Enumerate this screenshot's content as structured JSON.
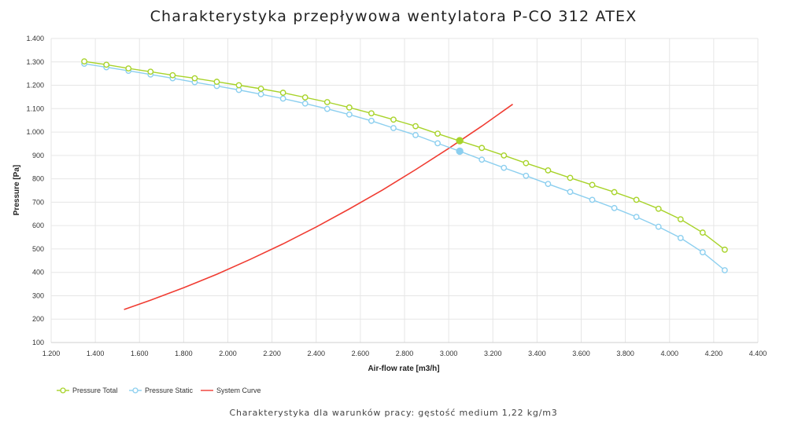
{
  "chart_data": {
    "type": "line",
    "title": "Charakterystyka przepływowa wentylatora P-CO 312 ATEX",
    "subtitle": "Charakterystyka dla warunków pracy: gęstość medium 1,22 kg/m3",
    "xlabel": "Air-flow rate [m3/h]",
    "ylabel": "Pressure [Pa]",
    "xlim": [
      1200,
      4400
    ],
    "ylim": [
      100,
      1400
    ],
    "x_ticks": [
      "1.200",
      "1.400",
      "1.600",
      "1.800",
      "2.000",
      "2.200",
      "2.400",
      "2.600",
      "2.800",
      "3.000",
      "3.200",
      "3.400",
      "3.600",
      "3.800",
      "4.000",
      "4.200",
      "4.400"
    ],
    "y_ticks": [
      "100",
      "200",
      "300",
      "400",
      "500",
      "600",
      "700",
      "800",
      "900",
      "1.000",
      "1.100",
      "1.200",
      "1.300",
      "1.400"
    ],
    "grid": true,
    "legend_position": "bottom-left",
    "series": [
      {
        "name": "Pressure Total",
        "color": "#a8d32a",
        "marker": "hollow-circle",
        "x": [
          1350,
          1450,
          1550,
          1650,
          1750,
          1850,
          1950,
          2050,
          2150,
          2250,
          2350,
          2450,
          2550,
          2650,
          2750,
          2850,
          2950,
          3050,
          3150,
          3250,
          3350,
          3450,
          3550,
          3650,
          3750,
          3850,
          3950,
          4050,
          4150,
          4250
        ],
        "y": [
          1302,
          1288,
          1272,
          1258,
          1243,
          1230,
          1215,
          1200,
          1185,
          1168,
          1148,
          1128,
          1105,
          1080,
          1053,
          1025,
          993,
          962,
          932,
          900,
          867,
          836,
          804,
          774,
          743,
          710,
          672,
          627,
          570,
          497
        ]
      },
      {
        "name": "Pressure Static",
        "color": "#8ccfef",
        "marker": "hollow-circle",
        "x": [
          1350,
          1450,
          1550,
          1650,
          1750,
          1850,
          1950,
          2050,
          2150,
          2250,
          2350,
          2450,
          2550,
          2650,
          2750,
          2850,
          2950,
          3050,
          3150,
          3250,
          3350,
          3450,
          3550,
          3650,
          3750,
          3850,
          3950,
          4050,
          4150,
          4250
        ],
        "y": [
          1292,
          1277,
          1262,
          1246,
          1230,
          1213,
          1197,
          1180,
          1162,
          1143,
          1122,
          1099,
          1075,
          1048,
          1017,
          987,
          952,
          918,
          882,
          847,
          813,
          778,
          744,
          710,
          675,
          637,
          595,
          547,
          486,
          409
        ]
      },
      {
        "name": "System Curve",
        "color": "#f03c32",
        "marker": "none",
        "x": [
          1530,
          1650,
          1800,
          1950,
          2100,
          2250,
          2400,
          2550,
          2700,
          2850,
          3000,
          3150,
          3290
        ],
        "y": [
          241,
          281,
          334,
          392,
          455,
          522,
          594,
          671,
          752,
          839,
          930,
          1025,
          1119
        ]
      }
    ],
    "operating_points": [
      {
        "series": "Pressure Total",
        "x": 3050,
        "y": 963,
        "color": "#a8d32a"
      },
      {
        "series": "Pressure Static",
        "x": 3050,
        "y": 918,
        "color": "#8ccfef"
      }
    ]
  }
}
